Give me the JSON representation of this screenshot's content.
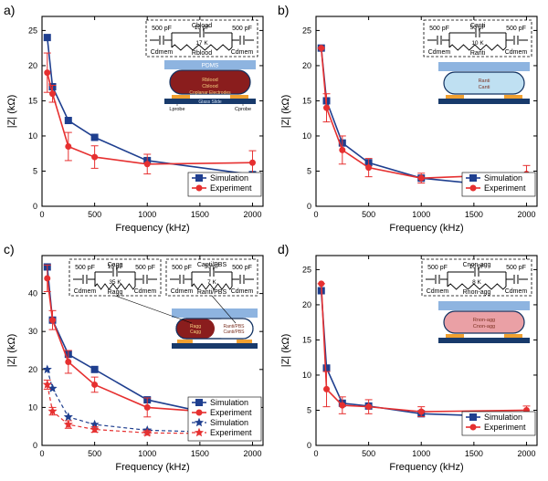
{
  "global": {
    "background_color": "#ffffff",
    "font_family": "Arial, sans-serif",
    "axis_color": "#000000",
    "axis_line_width": 1.1,
    "tick_font_size": 9,
    "axis_label_font_size": 11,
    "panel_label_font_size": 14,
    "legend_font_size": 9,
    "error_cap_width": 4,
    "series": {
      "simulation": {
        "color": "#1f3f8f",
        "marker": "square",
        "marker_size": 7,
        "line_width": 1.6
      },
      "experiment": {
        "color": "#e63030",
        "marker": "circle",
        "marker_size": 6,
        "line_width": 1.6
      },
      "simulation2": {
        "color": "#1f3f8f",
        "marker": "star",
        "marker_size": 8,
        "line_width": 1.2,
        "dash": "4,3"
      },
      "experiment2": {
        "color": "#e63030",
        "marker": "star",
        "marker_size": 8,
        "line_width": 1.2,
        "dash": "4,3"
      }
    },
    "inset_colors": {
      "box_stroke": "#000000",
      "box_dash": "3,2",
      "pdms": "#7aa7db",
      "glass": "#183a6b",
      "electrode": "#f0a030",
      "blood": "#8a1d1d",
      "anti": "#bfe0f2",
      "agg_outer": "#8a1d1d",
      "agg_inner": "#bfe0f2",
      "nonagg": "#eaa0a5"
    }
  },
  "panels": {
    "a": {
      "label": "a)",
      "x": {
        "label": "Frequency (kHz)",
        "lim": [
          0,
          2100
        ],
        "ticks": [
          0,
          500,
          1000,
          1500,
          2000
        ]
      },
      "y": {
        "label": "|Z| (kΩ)",
        "lim": [
          0,
          27
        ],
        "ticks": [
          0,
          5,
          10,
          15,
          20,
          25
        ]
      },
      "legend": [
        {
          "series": "simulation",
          "label": "Simulation"
        },
        {
          "series": "experiment",
          "label": "Experiment"
        }
      ],
      "data": [
        {
          "series": "simulation",
          "x": [
            50,
            100,
            250,
            500,
            1000,
            2000
          ],
          "y": [
            24.0,
            17.0,
            12.2,
            9.8,
            6.5,
            4.5
          ]
        },
        {
          "series": "experiment",
          "x": [
            50,
            100,
            250,
            500,
            1000,
            2000
          ],
          "y": [
            19.0,
            16.0,
            8.5,
            7.0,
            6.0,
            6.2
          ],
          "yerr": [
            2.8,
            1.2,
            2.0,
            1.6,
            1.4,
            1.7
          ]
        }
      ],
      "circuit": {
        "top_label": "Cblood",
        "cap_top": "15 pF",
        "r_val": "17 K",
        "r_label": "Rblood",
        "dmem_label": "Cdmem",
        "dmem_val": "500 pF"
      },
      "cartoon": {
        "pdms_label": "PDMS",
        "core_color": "#8a1d1d",
        "core_labels": [
          "Rblood",
          "Cblood"
        ],
        "bottom_labels": [
          "Coplanar Electrodes",
          "Glass Slide"
        ],
        "probe_labels": [
          "Lprobe",
          "Cprobe"
        ]
      }
    },
    "b": {
      "label": "b)",
      "x": {
        "label": "Frequency (kHz)",
        "lim": [
          0,
          2100
        ],
        "ticks": [
          0,
          500,
          1000,
          1500,
          2000
        ]
      },
      "y": {
        "label": "|Z| (kΩ)",
        "lim": [
          0,
          27
        ],
        "ticks": [
          0,
          5,
          10,
          15,
          20,
          25
        ]
      },
      "legend": [
        {
          "series": "simulation",
          "label": "Simulation"
        },
        {
          "series": "experiment",
          "label": "Experiment"
        }
      ],
      "data": [
        {
          "series": "simulation",
          "x": [
            50,
            100,
            250,
            500,
            1000,
            2000
          ],
          "y": [
            22.5,
            15.0,
            9.0,
            6.2,
            4.0,
            2.5
          ]
        },
        {
          "series": "experiment",
          "x": [
            50,
            100,
            250,
            500,
            1000,
            2000
          ],
          "y": [
            22.5,
            14.0,
            8.0,
            5.5,
            4.0,
            4.6
          ],
          "yerr": [
            0.0,
            2.0,
            2.0,
            1.3,
            0.7,
            1.2
          ]
        }
      ],
      "circuit": {
        "top_label": "Canti",
        "cap_top": "50 pF",
        "r_val": "10 K",
        "r_label": "Ranti",
        "dmem_label": "Cdmem",
        "dmem_val": "500 pF"
      },
      "cartoon": {
        "core_color": "#bfe0f2",
        "core_labels": [
          "Ranti",
          "Canti"
        ]
      }
    },
    "c": {
      "label": "c)",
      "x": {
        "label": "Frequency (kHz)",
        "lim": [
          0,
          2100
        ],
        "ticks": [
          0,
          500,
          1000,
          1500,
          2000
        ]
      },
      "y": {
        "label": "|Z| (kΩ)",
        "lim": [
          0,
          50
        ],
        "ticks": [
          0,
          10,
          20,
          30,
          40
        ]
      },
      "legend": [
        {
          "series": "simulation",
          "label": "Simulation"
        },
        {
          "series": "experiment",
          "label": "Experiment"
        },
        {
          "series": "simulation2",
          "label": "Simulation"
        },
        {
          "series": "experiment2",
          "label": "Experiment"
        }
      ],
      "data": [
        {
          "series": "simulation",
          "x": [
            50,
            100,
            250,
            500,
            1000,
            2000
          ],
          "y": [
            47.0,
            33.0,
            24.0,
            20.0,
            12.0,
            6.0
          ]
        },
        {
          "series": "experiment",
          "x": [
            50,
            100,
            250,
            500,
            1000,
            2000
          ],
          "y": [
            44.0,
            33.0,
            22.0,
            16.0,
            10.0,
            8.0
          ],
          "yerr": [
            3.5,
            2.5,
            3.0,
            2.0,
            2.5,
            1.5
          ]
        },
        {
          "series": "simulation2",
          "x": [
            50,
            100,
            250,
            500,
            1000,
            2000
          ],
          "y": [
            20.0,
            15.0,
            7.5,
            5.5,
            4.0,
            3.2
          ]
        },
        {
          "series": "experiment2",
          "x": [
            50,
            100,
            250,
            500,
            1000,
            2000
          ],
          "y": [
            16.0,
            9.0,
            5.5,
            4.2,
            3.3,
            3.0
          ],
          "yerr": [
            1.2,
            1.0,
            1.0,
            0.7,
            0.6,
            0.6
          ]
        }
      ],
      "circuit_left": {
        "top_label": "Cagg",
        "cap_top": "15 pF",
        "r_val": "35 K",
        "r_label": "Ragg",
        "dmem_label": "Cdmem",
        "dmem_val": "500 pF"
      },
      "circuit_right": {
        "top_label": "Canti/PBS",
        "cap_top": "30 pF",
        "r_val": "7 K",
        "r_label": "Ranti/PBS",
        "dmem_label": "Cdmem",
        "dmem_val": "500 pF"
      },
      "cartoon": {
        "pdms_color": "#7aa7db",
        "left_core_color": "#8a1d1d",
        "right_core_color": "#ffffff",
        "left_labels": [
          "Ragg",
          "Cagg"
        ],
        "right_labels": [
          "Ranti/PBS",
          "Canti/PBS"
        ]
      }
    },
    "d": {
      "label": "d)",
      "x": {
        "label": "Frequency (kHz)",
        "lim": [
          0,
          2100
        ],
        "ticks": [
          0,
          500,
          1000,
          1500,
          2000
        ]
      },
      "y": {
        "label": "|Z| (kΩ)",
        "lim": [
          0,
          27
        ],
        "ticks": [
          0,
          5,
          10,
          15,
          20,
          25
        ]
      },
      "legend": [
        {
          "series": "simulation",
          "label": "Simulation"
        },
        {
          "series": "experiment",
          "label": "Experiment"
        }
      ],
      "data": [
        {
          "series": "simulation",
          "x": [
            50,
            100,
            250,
            500,
            1000,
            2000
          ],
          "y": [
            22.0,
            11.0,
            6.0,
            5.6,
            4.5,
            4.0
          ]
        },
        {
          "series": "experiment",
          "x": [
            50,
            100,
            250,
            500,
            1000,
            2000
          ],
          "y": [
            23.0,
            8.0,
            5.7,
            5.5,
            4.8,
            5.0
          ],
          "yerr": [
            0.0,
            2.5,
            1.2,
            1.0,
            0.7,
            0.6
          ]
        }
      ],
      "circuit": {
        "top_label": "Cnon-agg",
        "cap_top": "10 pF",
        "r_val": "8 K",
        "r_label": "Rnon-agg",
        "dmem_label": "Cdmem",
        "dmem_val": "500 pF"
      },
      "cartoon": {
        "core_color": "#eaa0a5",
        "core_labels": [
          "Rnon-agg",
          "Cnon-agg"
        ]
      }
    }
  }
}
